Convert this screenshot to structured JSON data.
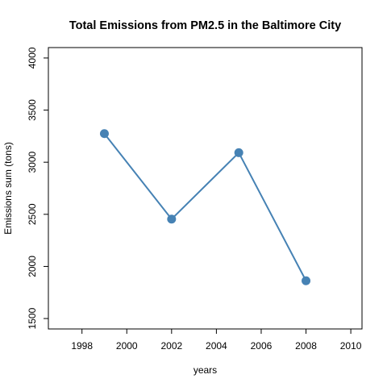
{
  "chart_data": {
    "type": "line",
    "title": "Total Emissions from PM2.5 in the Baltimore City",
    "xlabel": "years",
    "ylabel": "Emissions sum (tons)",
    "x": [
      1999,
      2002,
      2005,
      2008
    ],
    "y": [
      3274.18,
      2453.92,
      3091.35,
      1862.28
    ],
    "xlim": [
      1996.5,
      2010.5
    ],
    "ylim": [
      1400,
      4100
    ],
    "xticks": [
      "1998",
      "2000",
      "2002",
      "2004",
      "2006",
      "2008",
      "2010"
    ],
    "yticks": [
      "1500",
      "2000",
      "2500",
      "3000",
      "3500",
      "4000"
    ],
    "grid": false,
    "legend": "none",
    "line_color": "#4682b4",
    "marker_color": "#4682b4"
  }
}
